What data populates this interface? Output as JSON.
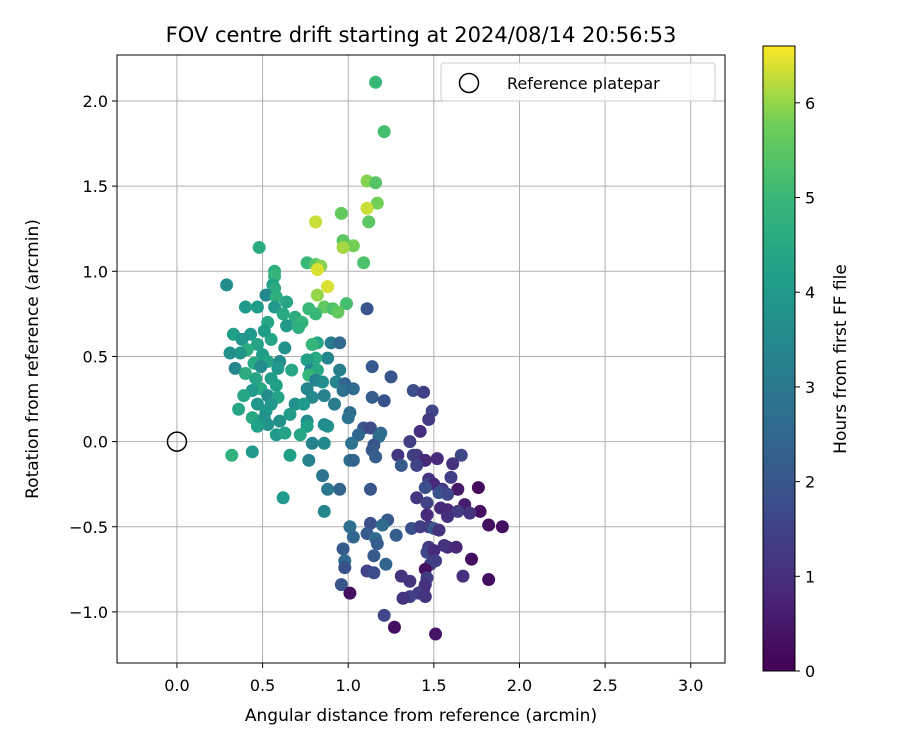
{
  "chart_data": {
    "type": "scatter",
    "title": "FOV centre drift starting at 2024/08/14 20:56:53",
    "xlabel": "Angular distance from reference (arcmin)",
    "ylabel": "Rotation from reference (arcmin)",
    "xlim": [
      -0.35,
      3.2
    ],
    "ylim": [
      -1.3,
      2.27
    ],
    "xticks": [
      0.0,
      0.5,
      1.0,
      1.5,
      2.0,
      2.5,
      3.0
    ],
    "xtick_labels": [
      "0.0",
      "0.5",
      "1.0",
      "1.5",
      "2.0",
      "2.5",
      "3.0"
    ],
    "yticks": [
      -1.0,
      -0.5,
      0.0,
      0.5,
      1.0,
      1.5,
      2.0
    ],
    "ytick_labels": [
      "−1.0",
      "−0.5",
      "0.0",
      "0.5",
      "1.0",
      "1.5",
      "2.0"
    ],
    "grid": true,
    "legend": {
      "placement": "upper-right",
      "entries": [
        "Reference platepar"
      ]
    },
    "reference_point": {
      "x": 0.0,
      "y": 0.0,
      "label": "Reference platepar"
    },
    "colorbar": {
      "label": "Hours from first FF file",
      "range": [
        0,
        6.6
      ],
      "ticks": [
        0,
        1,
        2,
        3,
        4,
        5,
        6
      ],
      "tick_labels": [
        "0",
        "1",
        "2",
        "3",
        "4",
        "5",
        "6"
      ],
      "colormap": "viridis"
    },
    "points": [
      [
        1.16,
        2.11,
        5.0
      ],
      [
        1.21,
        1.82,
        5.2
      ],
      [
        1.11,
        1.53,
        5.9
      ],
      [
        1.16,
        1.52,
        5.4
      ],
      [
        1.17,
        1.4,
        5.8
      ],
      [
        1.11,
        1.37,
        6.3
      ],
      [
        0.96,
        1.34,
        5.6
      ],
      [
        1.12,
        1.29,
        5.5
      ],
      [
        0.81,
        1.29,
        6.3
      ],
      [
        0.97,
        1.18,
        5.5
      ],
      [
        1.03,
        1.15,
        5.8
      ],
      [
        0.97,
        1.14,
        6.1
      ],
      [
        0.48,
        1.14,
        4.6
      ],
      [
        1.09,
        1.05,
        5.3
      ],
      [
        0.76,
        1.05,
        5.0
      ],
      [
        0.81,
        1.04,
        5.5
      ],
      [
        0.84,
        1.03,
        5.9
      ],
      [
        0.82,
        1.01,
        6.4
      ],
      [
        0.57,
        1.0,
        4.7
      ],
      [
        0.57,
        0.97,
        4.9
      ],
      [
        0.88,
        0.91,
        6.4
      ],
      [
        0.56,
        0.92,
        4.2
      ],
      [
        0.57,
        0.9,
        4.5
      ],
      [
        0.29,
        0.92,
        3.6
      ],
      [
        0.52,
        0.86,
        3.5
      ],
      [
        0.82,
        0.86,
        6.0
      ],
      [
        0.58,
        0.85,
        4.7
      ],
      [
        0.64,
        0.82,
        4.4
      ],
      [
        0.4,
        0.79,
        4.0
      ],
      [
        0.47,
        0.79,
        4.1
      ],
      [
        0.57,
        0.79,
        4.0
      ],
      [
        0.99,
        0.81,
        5.2
      ],
      [
        0.86,
        0.79,
        5.6
      ],
      [
        0.77,
        0.78,
        5.0
      ],
      [
        0.91,
        0.78,
        5.3
      ],
      [
        0.94,
        0.76,
        5.6
      ],
      [
        0.81,
        0.75,
        5.0
      ],
      [
        1.11,
        0.78,
        2.0
      ],
      [
        0.62,
        0.75,
        4.5
      ],
      [
        0.69,
        0.73,
        4.6
      ],
      [
        0.73,
        0.7,
        4.9
      ],
      [
        0.53,
        0.7,
        4.4
      ],
      [
        0.64,
        0.68,
        4.0
      ],
      [
        0.71,
        0.67,
        4.7
      ],
      [
        0.51,
        0.65,
        4.1
      ],
      [
        0.33,
        0.63,
        4.2
      ],
      [
        0.43,
        0.63,
        4.0
      ],
      [
        0.38,
        0.6,
        3.9
      ],
      [
        0.55,
        0.6,
        4.3
      ],
      [
        0.47,
        0.57,
        4.3
      ],
      [
        0.41,
        0.54,
        4.6
      ],
      [
        0.63,
        0.55,
        3.8
      ],
      [
        0.31,
        0.52,
        3.7
      ],
      [
        0.37,
        0.52,
        3.9
      ],
      [
        0.5,
        0.51,
        4.1
      ],
      [
        0.82,
        0.58,
        4.4
      ],
      [
        0.79,
        0.57,
        4.9
      ],
      [
        0.9,
        0.58,
        3.1
      ],
      [
        0.95,
        0.58,
        2.5
      ],
      [
        0.88,
        0.49,
        3.4
      ],
      [
        0.81,
        0.49,
        4.5
      ],
      [
        0.76,
        0.48,
        4.2
      ],
      [
        0.53,
        0.47,
        4.3
      ],
      [
        0.6,
        0.47,
        3.6
      ],
      [
        0.45,
        0.46,
        4.5
      ],
      [
        0.49,
        0.44,
        3.6
      ],
      [
        0.34,
        0.43,
        3.4
      ],
      [
        0.59,
        0.43,
        3.9
      ],
      [
        0.67,
        0.42,
        4.4
      ],
      [
        0.78,
        0.42,
        3.3
      ],
      [
        0.82,
        0.42,
        4.5
      ],
      [
        0.95,
        0.42,
        3.2
      ],
      [
        1.14,
        0.44,
        2.1
      ],
      [
        1.25,
        0.38,
        2.0
      ],
      [
        0.4,
        0.4,
        4.6
      ],
      [
        0.46,
        0.37,
        4.3
      ],
      [
        0.55,
        0.37,
        4.1
      ],
      [
        0.77,
        0.39,
        4.9
      ],
      [
        0.81,
        0.36,
        3.3
      ],
      [
        0.85,
        0.35,
        3.6
      ],
      [
        0.93,
        0.35,
        3.4
      ],
      [
        0.98,
        0.34,
        2.4
      ],
      [
        0.49,
        0.31,
        4.5
      ],
      [
        0.58,
        0.33,
        4.2
      ],
      [
        0.44,
        0.3,
        4.0
      ],
      [
        0.76,
        0.31,
        3.4
      ],
      [
        0.97,
        0.3,
        2.8
      ],
      [
        1.03,
        0.31,
        2.6
      ],
      [
        1.38,
        0.3,
        1.8
      ],
      [
        1.44,
        0.29,
        1.4
      ],
      [
        0.39,
        0.27,
        4.4
      ],
      [
        0.53,
        0.27,
        3.6
      ],
      [
        0.59,
        0.26,
        4.3
      ],
      [
        0.79,
        0.26,
        3.5
      ],
      [
        0.86,
        0.27,
        3.3
      ],
      [
        1.14,
        0.26,
        2.2
      ],
      [
        1.21,
        0.24,
        1.9
      ],
      [
        0.47,
        0.22,
        3.9
      ],
      [
        0.55,
        0.22,
        3.9
      ],
      [
        0.69,
        0.22,
        3.7
      ],
      [
        0.74,
        0.22,
        4.0
      ],
      [
        0.92,
        0.22,
        3.1
      ],
      [
        0.36,
        0.19,
        4.4
      ],
      [
        0.52,
        0.18,
        4.0
      ],
      [
        0.66,
        0.16,
        4.1
      ],
      [
        1.01,
        0.17,
        2.6
      ],
      [
        1.49,
        0.18,
        1.6
      ],
      [
        0.44,
        0.14,
        4.5
      ],
      [
        0.51,
        0.14,
        3.8
      ],
      [
        0.6,
        0.12,
        3.7
      ],
      [
        0.76,
        0.12,
        3.6
      ],
      [
        1.0,
        0.14,
        2.8
      ],
      [
        1.47,
        0.13,
        1.3
      ],
      [
        0.53,
        0.1,
        3.8
      ],
      [
        0.47,
        0.09,
        4.2
      ],
      [
        0.76,
        0.09,
        4.2
      ],
      [
        0.88,
        0.09,
        3.8
      ],
      [
        0.86,
        0.1,
        3.6
      ],
      [
        1.09,
        0.08,
        2.0
      ],
      [
        1.13,
        0.08,
        1.7
      ],
      [
        1.19,
        0.05,
        2.5
      ],
      [
        1.42,
        0.06,
        1.0
      ],
      [
        0.58,
        0.04,
        4.0
      ],
      [
        0.63,
        0.05,
        4.3
      ],
      [
        0.72,
        0.04,
        4.4
      ],
      [
        1.06,
        0.04,
        2.5
      ],
      [
        1.18,
        0.03,
        2.7
      ],
      [
        1.36,
        0.0,
        1.4
      ],
      [
        0.79,
        -0.01,
        3.3
      ],
      [
        0.86,
        -0.01,
        3.5
      ],
      [
        1.02,
        -0.01,
        2.8
      ],
      [
        1.15,
        -0.02,
        2.0
      ],
      [
        0.32,
        -0.08,
        4.8
      ],
      [
        0.44,
        -0.06,
        4.0
      ],
      [
        0.66,
        -0.08,
        4.2
      ],
      [
        1.14,
        -0.05,
        2.1
      ],
      [
        1.29,
        -0.08,
        1.2
      ],
      [
        1.38,
        -0.08,
        1.5
      ],
      [
        1.4,
        -0.08,
        1.3
      ],
      [
        1.66,
        -0.08,
        1.6
      ],
      [
        0.77,
        -0.11,
        3.3
      ],
      [
        1.01,
        -0.11,
        2.7
      ],
      [
        1.03,
        -0.11,
        2.4
      ],
      [
        1.16,
        -0.09,
        2.2
      ],
      [
        1.52,
        -0.1,
        0.9
      ],
      [
        1.45,
        -0.11,
        0.8
      ],
      [
        1.31,
        -0.14,
        2.1
      ],
      [
        1.4,
        -0.14,
        1.5
      ],
      [
        1.61,
        -0.13,
        1.1
      ],
      [
        0.85,
        -0.2,
        2.9
      ],
      [
        1.47,
        -0.22,
        1.1
      ],
      [
        1.6,
        -0.21,
        1.4
      ],
      [
        1.47,
        -0.25,
        1.6
      ],
      [
        1.5,
        -0.25,
        0.9
      ],
      [
        1.45,
        -0.27,
        1.8
      ],
      [
        1.64,
        -0.28,
        0.5
      ],
      [
        1.76,
        -0.27,
        0.2
      ],
      [
        0.88,
        -0.28,
        3.0
      ],
      [
        0.95,
        -0.28,
        2.4
      ],
      [
        1.13,
        -0.28,
        2.0
      ],
      [
        1.55,
        -0.28,
        1.3
      ],
      [
        1.53,
        -0.3,
        1.9
      ],
      [
        1.58,
        -0.31,
        1.6
      ],
      [
        1.4,
        -0.33,
        1.2
      ],
      [
        0.62,
        -0.33,
        4.0
      ],
      [
        1.46,
        -0.36,
        1.5
      ],
      [
        1.68,
        -0.37,
        0.6
      ],
      [
        1.54,
        -0.39,
        0.9
      ],
      [
        1.58,
        -0.4,
        0.8
      ],
      [
        1.64,
        -0.41,
        1.3
      ],
      [
        1.77,
        -0.41,
        0.3
      ],
      [
        1.71,
        -0.42,
        1.1
      ],
      [
        0.86,
        -0.41,
        3.4
      ],
      [
        1.46,
        -0.43,
        0.9
      ],
      [
        1.58,
        -0.44,
        1.0
      ],
      [
        1.23,
        -0.46,
        2.1
      ],
      [
        1.13,
        -0.48,
        1.8
      ],
      [
        1.2,
        -0.49,
        2.6
      ],
      [
        1.82,
        -0.49,
        0.3
      ],
      [
        1.9,
        -0.5,
        0.3
      ],
      [
        1.01,
        -0.5,
        2.7
      ],
      [
        1.37,
        -0.51,
        1.9
      ],
      [
        1.42,
        -0.5,
        1.4
      ],
      [
        1.47,
        -0.5,
        1.3
      ],
      [
        1.5,
        -0.51,
        2.0
      ],
      [
        1.53,
        -0.52,
        1.1
      ],
      [
        1.11,
        -0.54,
        2.1
      ],
      [
        1.03,
        -0.56,
        2.5
      ],
      [
        1.28,
        -0.55,
        2.2
      ],
      [
        1.16,
        -0.57,
        2.6
      ],
      [
        1.17,
        -0.6,
        2.2
      ],
      [
        1.58,
        -0.62,
        0.8
      ],
      [
        1.47,
        -0.62,
        1.2
      ],
      [
        1.56,
        -0.61,
        1.1
      ],
      [
        1.63,
        -0.62,
        0.8
      ],
      [
        0.97,
        -0.63,
        2.1
      ],
      [
        1.46,
        -0.65,
        1.6
      ],
      [
        1.5,
        -0.64,
        0.9
      ],
      [
        1.15,
        -0.67,
        2.1
      ],
      [
        1.72,
        -0.69,
        0.3
      ],
      [
        1.48,
        -0.72,
        1.4
      ],
      [
        1.51,
        -0.7,
        1.4
      ],
      [
        0.98,
        -0.7,
        2.5
      ],
      [
        1.22,
        -0.72,
        2.4
      ],
      [
        0.98,
        -0.74,
        1.9
      ],
      [
        1.11,
        -0.76,
        1.5
      ],
      [
        1.15,
        -0.77,
        1.7
      ],
      [
        1.45,
        -0.75,
        0.3
      ],
      [
        1.31,
        -0.79,
        1.1
      ],
      [
        1.67,
        -0.79,
        1.0
      ],
      [
        1.82,
        -0.81,
        0.3
      ],
      [
        1.36,
        -0.82,
        1.1
      ],
      [
        1.46,
        -0.8,
        1.4
      ],
      [
        1.45,
        -0.84,
        1.1
      ],
      [
        0.96,
        -0.84,
        2.0
      ],
      [
        1.44,
        -0.87,
        1.0
      ],
      [
        1.41,
        -0.89,
        1.3
      ],
      [
        1.01,
        -0.89,
        0.3
      ],
      [
        1.36,
        -0.91,
        1.4
      ],
      [
        1.32,
        -0.92,
        1.1
      ],
      [
        1.45,
        -0.91,
        1.1
      ],
      [
        1.21,
        -1.02,
        1.6
      ],
      [
        1.27,
        -1.09,
        0.3
      ],
      [
        1.51,
        -1.13,
        0.4
      ]
    ]
  }
}
